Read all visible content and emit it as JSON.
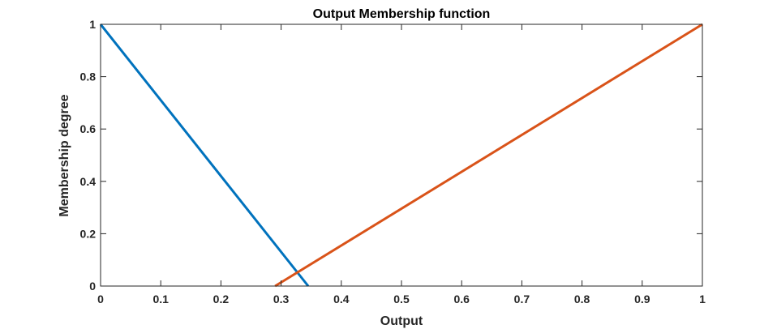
{
  "chart_data": {
    "type": "line",
    "title": "Output Membership function",
    "xlabel": "Output",
    "ylabel": "Membership degree",
    "xlim": [
      0,
      1
    ],
    "ylim": [
      0,
      1
    ],
    "xticks": [
      0,
      0.1,
      0.2,
      0.3,
      0.4,
      0.5,
      0.6,
      0.7,
      0.8,
      0.9,
      1
    ],
    "yticks": [
      0,
      0.2,
      0.4,
      0.6,
      0.8,
      1
    ],
    "xtick_labels": [
      "0",
      "0.1",
      "0.2",
      "0.3",
      "0.4",
      "0.5",
      "0.6",
      "0.7",
      "0.8",
      "0.9",
      "1"
    ],
    "ytick_labels": [
      "0",
      "0.2",
      "0.4",
      "0.6",
      "0.8",
      "1"
    ],
    "grid": false,
    "series": [
      {
        "color": "#0072BD",
        "x": [
          0,
          0.345
        ],
        "y": [
          1,
          0
        ]
      },
      {
        "color": "#D95319",
        "x": [
          0.29,
          1
        ],
        "y": [
          0,
          1
        ]
      }
    ]
  }
}
